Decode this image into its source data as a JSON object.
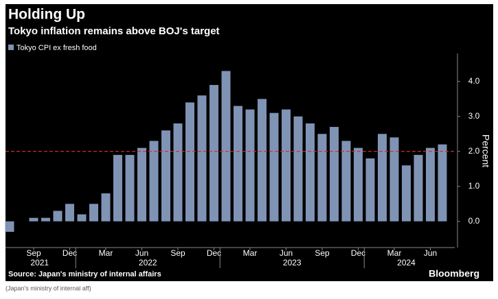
{
  "chart_data": {
    "type": "bar",
    "title": "Holding Up",
    "subtitle": "Tokyo inflation remains above BOJ's target",
    "source": "Source: Japan's ministry of internal affairs",
    "brand": "Bloomberg",
    "caption": "(Japan's ministry of internal aff)",
    "y_axis_label": "Percent",
    "x": [
      "2021-07",
      "2021-08",
      "2021-09",
      "2021-10",
      "2021-11",
      "2021-12",
      "2022-01",
      "2022-02",
      "2022-03",
      "2022-04",
      "2022-05",
      "2022-06",
      "2022-07",
      "2022-08",
      "2022-09",
      "2022-10",
      "2022-11",
      "2022-12",
      "2023-01",
      "2023-02",
      "2023-03",
      "2023-04",
      "2023-05",
      "2023-06",
      "2023-07",
      "2023-08",
      "2023-09",
      "2023-10",
      "2023-11",
      "2023-12",
      "2024-01",
      "2024-02",
      "2024-03",
      "2024-04",
      "2024-05",
      "2024-06",
      "2024-07"
    ],
    "series": [
      {
        "name": "Tokyo CPI ex fresh food",
        "color": "#7f93b4",
        "values": [
          -0.3,
          0.0,
          0.1,
          0.1,
          0.3,
          0.5,
          0.2,
          0.5,
          0.8,
          1.9,
          1.9,
          2.1,
          2.3,
          2.6,
          2.8,
          3.4,
          3.6,
          3.9,
          4.3,
          3.3,
          3.2,
          3.5,
          3.1,
          3.2,
          3.0,
          2.8,
          2.5,
          2.7,
          2.3,
          2.1,
          1.8,
          2.5,
          2.4,
          1.6,
          1.9,
          2.1,
          2.2
        ]
      }
    ],
    "xticks": [
      {
        "value": "2021-09",
        "label": "Sep"
      },
      {
        "value": "2021-12",
        "label": "Dec"
      },
      {
        "value": "2022-03",
        "label": "Mar"
      },
      {
        "value": "2022-06",
        "label": "Jun"
      },
      {
        "value": "2022-09",
        "label": "Sep"
      },
      {
        "value": "2022-12",
        "label": "Dec"
      },
      {
        "value": "2023-03",
        "label": "Mar"
      },
      {
        "value": "2023-06",
        "label": "Jun"
      },
      {
        "value": "2023-09",
        "label": "Sep"
      },
      {
        "value": "2023-12",
        "label": "Dec"
      },
      {
        "value": "2024-03",
        "label": "Mar"
      },
      {
        "value": "2024-06",
        "label": "Jun"
      }
    ],
    "year_labels": [
      "2021",
      "2022",
      "2023",
      "2024"
    ],
    "ylim": [
      -0.75,
      4.8
    ],
    "yticks": [
      {
        "value": 0,
        "label": "0.0"
      },
      {
        "value": 1,
        "label": "1.0"
      },
      {
        "value": 2,
        "label": "2.0"
      },
      {
        "value": 3,
        "label": "3.0"
      },
      {
        "value": 4,
        "label": "4.0"
      }
    ],
    "reference_line": {
      "value": 2,
      "color": "#d0312d"
    },
    "y_axis_side": "right"
  }
}
